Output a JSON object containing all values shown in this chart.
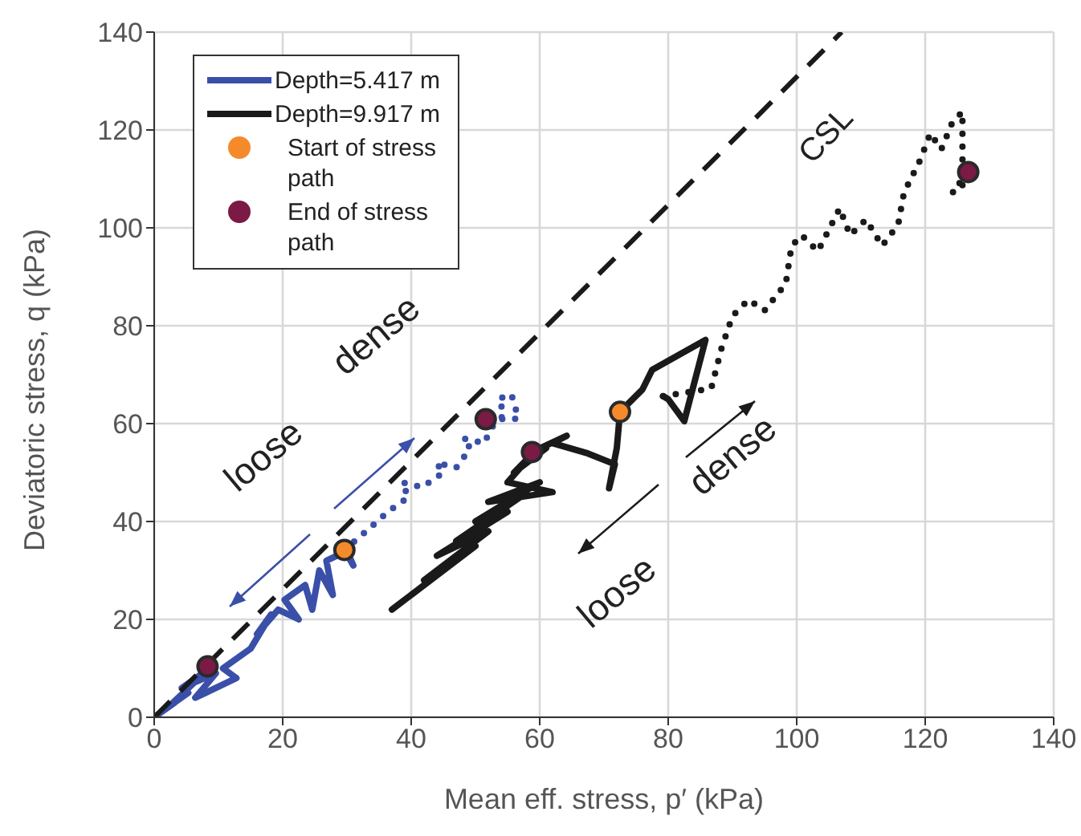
{
  "chart_data": {
    "type": "line",
    "xlabel": "Mean eff. stress,  p′ (kPa)",
    "ylabel": "Deviatoric stress,  q (kPa)",
    "xlim": [
      0,
      140
    ],
    "ylim": [
      0,
      140
    ],
    "xticks": [
      0,
      20,
      40,
      60,
      80,
      100,
      120,
      140
    ],
    "yticks": [
      0,
      20,
      40,
      60,
      80,
      100,
      120,
      140
    ],
    "grid": true,
    "legend": "top left",
    "series": [
      {
        "name": "Depth=5.417 m",
        "color": "#3a4fa8",
        "line_style": "solid",
        "x": [
          0,
          3.2,
          1,
          5.3,
          2.1,
          8.6,
          4.3,
          9.6,
          6.4,
          12.8,
          10.7,
          15,
          18.2,
          16,
          19.3,
          22.5,
          20.3,
          23.5,
          24.6,
          25.7,
          27.8,
          26.8,
          30,
          31,
          29.6
        ],
        "values": [
          0,
          3,
          1,
          5,
          2,
          10,
          6,
          9,
          4,
          8,
          10,
          14,
          21,
          17,
          22,
          20,
          24,
          27,
          22,
          30,
          25,
          32,
          34,
          31,
          34.2
        ]
      },
      {
        "color": "#3a4fa8",
        "line_style": "dotted",
        "x": [
          29.6,
          33,
          36.4,
          39.6,
          38.5,
          41.7,
          45,
          43.9,
          47,
          49.2,
          48,
          51.4,
          52.4,
          54.6,
          53.5,
          55.6,
          56.7,
          51.6
        ],
        "values": [
          34.2,
          38,
          42,
          45,
          48,
          47,
          50,
          52,
          51,
          55,
          57,
          56,
          59,
          62,
          65,
          66,
          61,
          60.9
        ]
      },
      {
        "name": "Depth=9.917 m",
        "color": "#1a1a1a",
        "line_style": "solid",
        "x": [
          37,
          45,
          40,
          50,
          42,
          52,
          44,
          55,
          47,
          57,
          50,
          60,
          52,
          62,
          55,
          59,
          56,
          61,
          58.8,
          64.2,
          62,
          67.5,
          71.7,
          70.8,
          72,
          72.5,
          76,
          77.5,
          85.8,
          82.5,
          80,
          79.2
        ],
        "values": [
          22,
          30,
          25,
          35,
          28,
          38,
          33,
          42,
          36,
          45,
          40,
          48,
          44,
          46,
          48,
          54,
          50,
          55,
          54.2,
          57.5,
          56,
          53.9,
          51.7,
          46.8,
          55,
          62.4,
          67,
          71,
          77.1,
          60.5,
          65,
          65.6
        ]
      },
      {
        "color": "#1a1a1a",
        "line_style": "dotted",
        "x": [
          79.2,
          86.7,
          88.3,
          90,
          92.5,
          95,
          98.3,
          99.2,
          100.8,
          103.3,
          106.7,
          108.3,
          110.8,
          113.3,
          115.8,
          116.7,
          119.2,
          120.8,
          122.5,
          124.2,
          125.8,
          125.8,
          124.2,
          126.7
        ],
        "values": [
          65.6,
          67.2,
          75.4,
          82,
          85.3,
          83.1,
          88.6,
          96.3,
          98.5,
          95.2,
          104,
          98.5,
          101.7,
          96.3,
          100.7,
          107.2,
          113.8,
          119.3,
          116,
          121.5,
          123.7,
          108.3,
          107.2,
          111.4
        ]
      },
      {
        "color": "#1a1a1a",
        "line_style": "dashed",
        "x": [
          0,
          107
        ],
        "values": [
          0,
          140
        ]
      },
      {
        "name": "Start of stress path",
        "type": "scatter",
        "marker": "circle",
        "color": "#f58a2a",
        "x": [
          29.6,
          72.5
        ],
        "values": [
          34.2,
          62.4
        ]
      },
      {
        "name": "End of stress path",
        "type": "scatter",
        "marker": "circle",
        "color": "#7a1a45",
        "x": [
          8.3,
          51.6,
          58.8,
          126.7
        ],
        "values": [
          10.4,
          60.9,
          54.2,
          111.4
        ]
      }
    ],
    "annotations": [
      "CSL",
      "loose",
      "dense",
      "dense",
      "loose"
    ]
  }
}
